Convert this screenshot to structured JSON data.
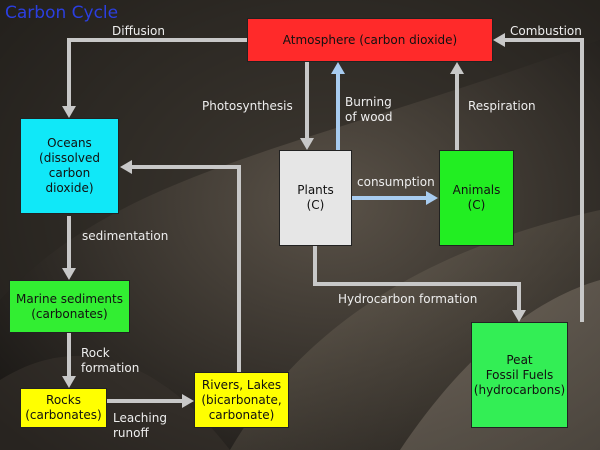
{
  "title": "Carbon Cycle",
  "colors": {
    "atmosphere": "#ff2a2a",
    "oceans": "#10e8f8",
    "marine": "#32ee32",
    "rocks": "#ffff00",
    "rivers": "#ffff00",
    "plants": "#e6e6e6",
    "animals": "#22ee22",
    "fossil": "#33ee55",
    "arrow_gray": "#c8c8c8",
    "arrow_blue": "#a8ccf0"
  },
  "boxes": {
    "atmosphere": "Atmosphere (carbon dioxide)",
    "oceans": "Oceans\n(dissolved\ncarbon\ndioxide)",
    "marine": "Marine sediments\n(carbonates)",
    "rocks": "Rocks\n(carbonates)",
    "rivers": "Rivers, Lakes\n(bicarbonate,\ncarbonate)",
    "plants": "Plants\n(C)",
    "animals": "Animals\n(C)",
    "fossil": "Peat\nFossil Fuels\n(hydrocarbons)"
  },
  "labels": {
    "diffusion": "Diffusion",
    "combustion": "Combustion",
    "photosynthesis": "Photosynthesis",
    "burning": "Burning\nof wood",
    "respiration": "Respiration",
    "consumption": "consumption",
    "sedimentation": "sedimentation",
    "hydrocarbon": "Hydrocarbon formation",
    "rock_formation": "Rock\nformation",
    "leaching": "Leaching\nrunoff"
  }
}
